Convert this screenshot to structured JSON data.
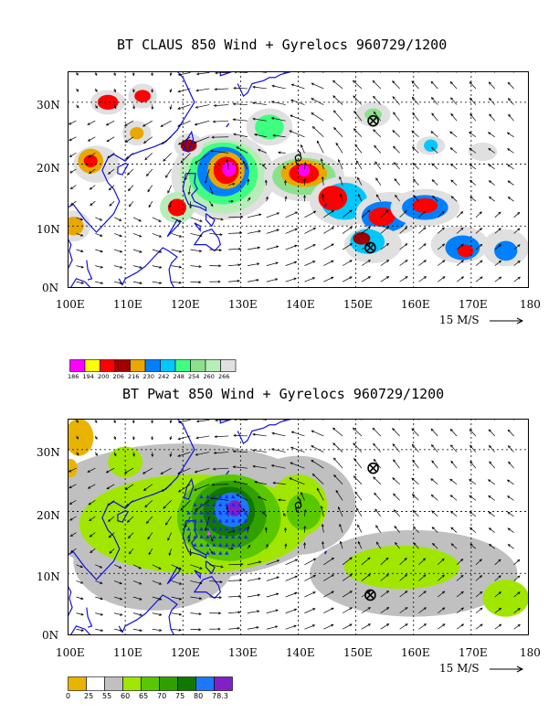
{
  "panels": [
    {
      "title": "BT CLAUS 850 Wind + Gyrelocs 960729/1200",
      "lat_labels": [
        "30N",
        "20N",
        "10N",
        "0N"
      ],
      "lon_labels": [
        "100E",
        "110E",
        "120E",
        "130E",
        "140E",
        "150E",
        "160E",
        "170E",
        "180"
      ],
      "ref_vector": "15 M/S",
      "legend": {
        "colors": [
          "#ff00ff",
          "#ffff00",
          "#ff0000",
          "#a00000",
          "#e8a800",
          "#0080ff",
          "#00c8ff",
          "#40ff80",
          "#8ce08c",
          "#b8ecb8",
          "#e0e0e0"
        ],
        "labels": [
          "186",
          "194",
          "200",
          "206",
          "216",
          "230",
          "242",
          "248",
          "254",
          "260",
          "266"
        ]
      },
      "gyrelocs": [
        {
          "symbol": "circle-x",
          "lon": 153,
          "lat": 27
        },
        {
          "symbol": "circle-x",
          "lon": 152.5,
          "lat": 6.5
        },
        {
          "symbol": "typhoon",
          "lon": 140,
          "lat": 21
        }
      ]
    },
    {
      "title": "BT Pwat 850 Wind + Gyrelocs 960729/1200",
      "lat_labels": [
        "30N",
        "20N",
        "10N",
        "0N"
      ],
      "lon_labels": [
        "100E",
        "110E",
        "120E",
        "130E",
        "140E",
        "150E",
        "160E",
        "170E",
        "180"
      ],
      "ref_vector": "15 M/S",
      "legend": {
        "colors": [
          "#e8b400",
          "#ffffff",
          "#c0c0c0",
          "#a0e600",
          "#5ac800",
          "#30a000",
          "#107800",
          "#1e78ff",
          "#8020c8"
        ],
        "labels": [
          "0",
          "25",
          "55",
          "60",
          "65",
          "70",
          "75",
          "80",
          "78.3"
        ]
      },
      "gyrelocs": [
        {
          "symbol": "circle-x",
          "lon": 153,
          "lat": 27
        },
        {
          "symbol": "circle-x",
          "lon": 152.5,
          "lat": 6.5
        },
        {
          "symbol": "typhoon",
          "lon": 140,
          "lat": 21
        }
      ]
    }
  ]
}
